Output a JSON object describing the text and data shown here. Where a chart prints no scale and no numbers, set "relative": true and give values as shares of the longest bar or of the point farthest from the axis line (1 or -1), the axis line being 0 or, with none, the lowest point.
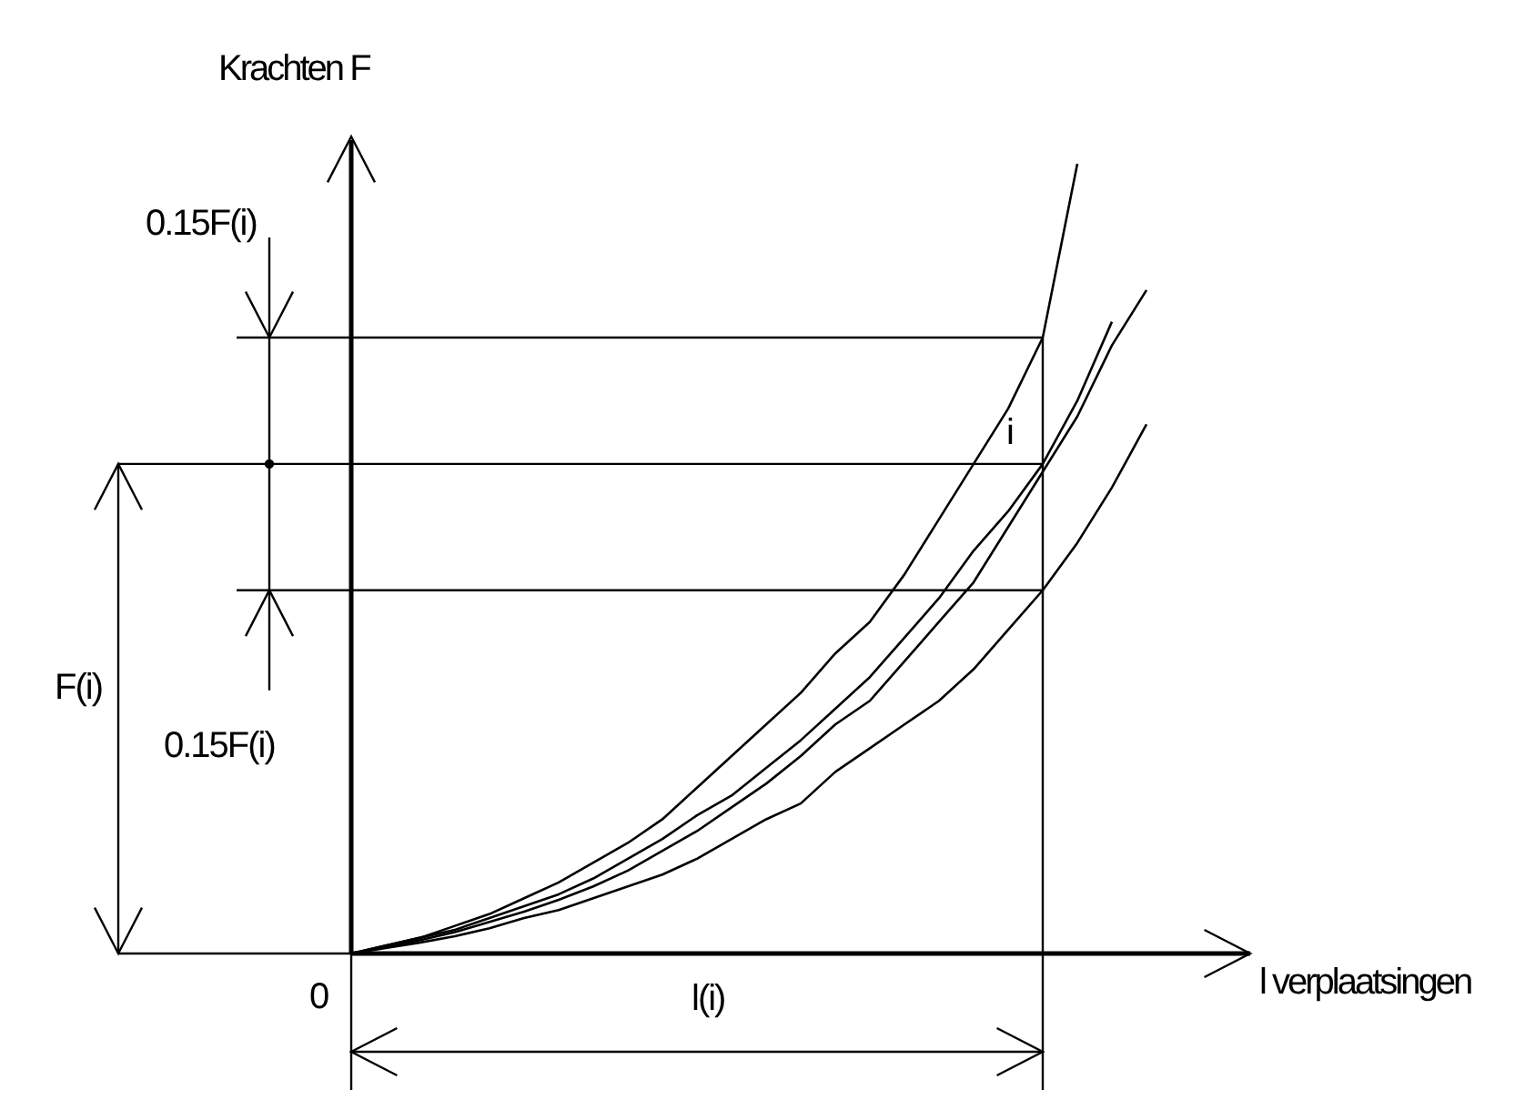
{
  "chart_data": {
    "type": "line",
    "relative": true,
    "ylabel": "Krachten F",
    "xlabel": "l verplaatsingen",
    "marker": "none",
    "line_style": "solid",
    "categories": [
      null,
      null,
      null,
      null,
      null,
      null,
      null,
      null,
      null,
      null,
      null,
      null,
      null,
      null,
      null,
      null,
      null,
      null,
      null,
      null,
      null,
      null,
      null,
      null
    ],
    "series": [
      {
        "color": "#000000",
        "values": [
          0,
          0.01,
          0.02,
          0.035,
          0.05,
          0.07,
          0.09,
          0.115,
          0.14,
          0.17,
          0.21,
          0.25,
          0.29,
          0.33,
          0.38,
          0.42,
          0.48,
          0.55,
          0.62,
          0.69,
          0.78,
          1,
          null,
          null
        ]
      },
      {
        "color": "#000000",
        "values": [
          0,
          0.01,
          0.02,
          0.03,
          0.045,
          0.06,
          0.075,
          0.095,
          0.12,
          0.145,
          0.175,
          0.2,
          0.235,
          0.27,
          0.31,
          0.35,
          0.4,
          0.45,
          0.51,
          0.56,
          0.62,
          0.7,
          0.8,
          null
        ]
      },
      {
        "color": "#000000",
        "values": [
          0,
          0.008,
          0.017,
          0.027,
          0.04,
          0.053,
          0.068,
          0.085,
          0.105,
          0.13,
          0.155,
          0.185,
          0.215,
          0.25,
          0.29,
          0.32,
          0.37,
          0.42,
          0.47,
          0.54,
          0.61,
          0.68,
          0.77,
          0.84
        ]
      },
      {
        "color": "#000000",
        "values": [
          0,
          0.007,
          0.014,
          0.022,
          0.032,
          0.045,
          0.055,
          0.07,
          0.085,
          0.1,
          0.12,
          0.145,
          0.17,
          0.19,
          0.23,
          0.26,
          0.29,
          0.32,
          0.36,
          0.41,
          0.46,
          0.52,
          0.59,
          0.67
        ]
      }
    ],
    "ref_lines": [
      {
        "axis": "y",
        "value": 0.78,
        "color": "#000000"
      },
      {
        "axis": "y",
        "value": 0.62,
        "color": "#000000"
      },
      {
        "axis": "y",
        "value": 0.46,
        "color": "#000000"
      }
    ],
    "annotations": [
      "0.15F(i)",
      "F(i)",
      "0.15F(i)",
      "l(i)",
      "0",
      "i"
    ]
  }
}
